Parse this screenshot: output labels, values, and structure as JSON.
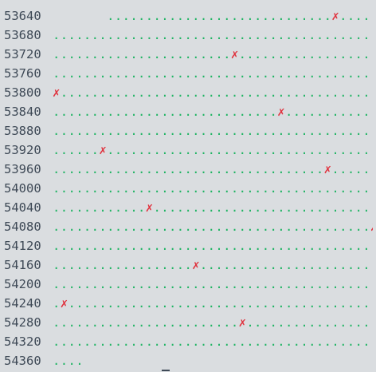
{
  "rows": [
    {
      "addr": "53640",
      "cells": "       .............................✗......"
    },
    {
      "addr": "53680",
      "cells": "...................................................."
    },
    {
      "addr": "53720",
      "cells": ".......................✗......................................"
    },
    {
      "addr": "53760",
      "cells": "...................................................."
    },
    {
      "addr": "53800",
      "cells": "✗..........................................................."
    },
    {
      "addr": "53840",
      "cells": ".............................✗................................"
    },
    {
      "addr": "53880",
      "cells": "...................................................."
    },
    {
      "addr": "53920",
      "cells": "......✗....................................................."
    },
    {
      "addr": "53960",
      "cells": "...................................✗........................"
    },
    {
      "addr": "54000",
      "cells": "...................................................."
    },
    {
      "addr": "54040",
      "cells": "............✗..............................................."
    },
    {
      "addr": "54080",
      "cells": ".........................................✗.................."
    },
    {
      "addr": "54120",
      "cells": "...................................................."
    },
    {
      "addr": "54160",
      "cells": "..................✗........................................."
    },
    {
      "addr": "54200",
      "cells": "...................................................."
    },
    {
      "addr": "54240",
      "cells": ".✗.........................................................."
    },
    {
      "addr": "54280",
      "cells": "........................✗..................................."
    },
    {
      "addr": "54320",
      "cells": "...................................................."
    },
    {
      "addr": "54360",
      "cells": "...."
    }
  ],
  "marker_glyph": "✗",
  "colors": {
    "address": "#3f4a57",
    "dot": "#1fb463",
    "marker": "#e0303c",
    "background": "#dadde0"
  }
}
